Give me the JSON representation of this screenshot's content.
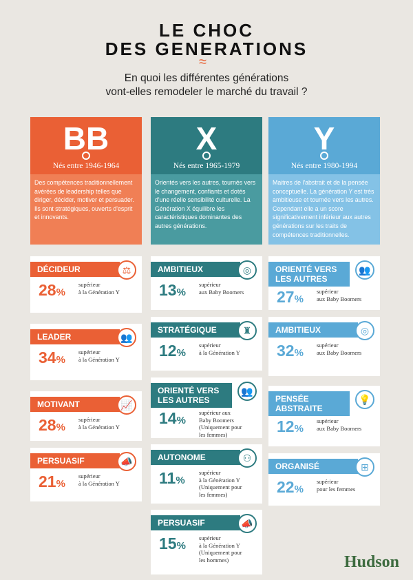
{
  "title": {
    "line1": "LE CHOC",
    "line2": "DES GENERATIONS"
  },
  "subtitle": {
    "line1": "En quoi les différentes générations",
    "line2": "vont-elles remodeler le marché du travail ?"
  },
  "colors": {
    "bb": "#ea6035",
    "bb_light": "#f07f55",
    "x": "#2d7b80",
    "x_light": "#4a9ba0",
    "y": "#5aa9d6",
    "y_light": "#84c2e6"
  },
  "columns": [
    {
      "code": "BB",
      "born": "Nés entre 1946-1964",
      "description": "Des compétences traditionnellement avérées de leadership telles que diriger, décider, motiver et persuader. Ils sont stratégiques, ouverts d'esprit et innovants.",
      "cards": [
        {
          "label": "DÉCIDEUR",
          "icon": "balance-icon",
          "value": "28",
          "unit": "%",
          "text": "supérieur\nà la Génération Y"
        },
        {
          "label": "LEADER",
          "icon": "people-icon",
          "value": "34",
          "unit": "%",
          "text": "supérieur\nà la Génération Y"
        },
        {
          "label": "MOTIVANT",
          "icon": "rising-chart-icon",
          "value": "28",
          "unit": "%",
          "text": "supérieur\nà la Génération Y"
        },
        {
          "label": "PERSUASIF",
          "icon": "megaphone-icon",
          "value": "21",
          "unit": "%",
          "text": "supérieur\nà la Génération Y"
        }
      ]
    },
    {
      "code": "X",
      "born": "Nés entre 1965-1979",
      "description": "Orientés vers les autres, tournés vers le changement, confiants et dotés d'une réelle sensibilité culturelle. La Génération X équilibre les caractéristiques dominantes des autres générations.",
      "cards": [
        {
          "label": "AMBITIEUX",
          "icon": "target-icon",
          "value": "13",
          "unit": "%",
          "text": "supérieur\naux Baby Boomers"
        },
        {
          "label": "STRATÉGIQUE",
          "icon": "chess-icon",
          "value": "12",
          "unit": "%",
          "text": "supérieur\nà la Génération Y"
        },
        {
          "label": "ORIENTÉ VERS\nLES AUTRES",
          "icon": "group-icon",
          "value": "14",
          "unit": "%",
          "text": "supérieur aux\nBaby Boomers\n(Uniquement pour\nles femmes)"
        },
        {
          "label": "AUTONOME",
          "icon": "person-network-icon",
          "value": "11",
          "unit": "%",
          "text": "supérieur\nà la Génération Y\n(Uniquement pour\nles femmes)"
        },
        {
          "label": "PERSUASIF",
          "icon": "megaphone-icon",
          "value": "15",
          "unit": "%",
          "text": "supérieur\nà la Génération Y\n(Uniquement pour\nles hommes)"
        }
      ]
    },
    {
      "code": "Y",
      "born": "Nés entre 1980-1994",
      "description": "Maitres de l'abstrait et de la pensée conceptuelle. La génération Y est très ambitieuse et tournée vers les autres. Cependant elle a un score significativement inférieur aux autres générations sur les traits de compétences traditionnelles.",
      "cards": [
        {
          "label": "ORIENTÉ VERS\nLES AUTRES",
          "icon": "group-icon",
          "value": "27",
          "unit": "%",
          "text": "supérieur\naux Baby Boomers"
        },
        {
          "label": "AMBITIEUX",
          "icon": "target-icon",
          "value": "32",
          "unit": "%",
          "text": "supérieur\naux Baby Boomers"
        },
        {
          "label": "PENSÉE\nABSTRAITE",
          "icon": "lightbulb-icon",
          "value": "12",
          "unit": "%",
          "text": "supérieur\naux Baby Boomers"
        },
        {
          "label": "ORGANISÉ",
          "icon": "org-chart-icon",
          "value": "22",
          "unit": "%",
          "text": "supérieur\npour les femmes"
        }
      ]
    }
  ],
  "logo": "Hudson"
}
